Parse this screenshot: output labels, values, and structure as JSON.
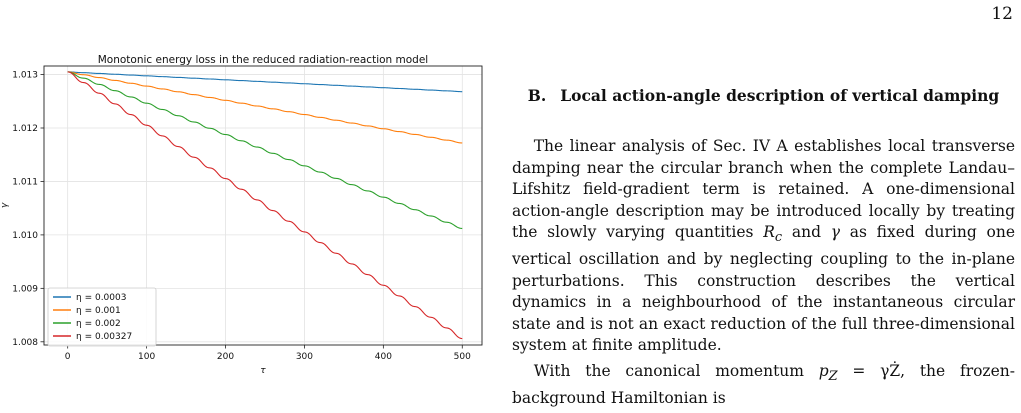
{
  "page": {
    "number": "12"
  },
  "figure": {
    "chart_data": {
      "type": "line",
      "title": "Monotonic energy loss in the reduced radiation-reaction model",
      "xlabel": "τ",
      "ylabel": "γ",
      "xlim": [
        -30,
        525
      ],
      "ylim": [
        1.00794,
        1.01316
      ],
      "x_ticks": [
        0,
        100,
        200,
        300,
        400,
        500
      ],
      "x_tick_labels": [
        "0",
        "100",
        "200",
        "300",
        "400",
        "500"
      ],
      "y_ticks": [
        1.008,
        1.009,
        1.01,
        1.011,
        1.012,
        1.013
      ],
      "y_tick_labels": [
        "1.008",
        "1.009",
        "1.010",
        "1.011",
        "1.012",
        "1.013"
      ],
      "grid": true,
      "legend_position": "lower-left",
      "x_start": 0,
      "x_end": 500,
      "step_period": 20,
      "series": [
        {
          "name": "η = 0.0003",
          "color": "#1f77b4",
          "start": 1.01305,
          "end": 1.01268
        },
        {
          "name": "η = 0.001",
          "color": "#ff7f0e",
          "start": 1.01305,
          "end": 1.01172
        },
        {
          "name": "η = 0.002",
          "color": "#2ca02c",
          "start": 1.01305,
          "end": 1.01012
        },
        {
          "name": "η = 0.00327",
          "color": "#d62728",
          "start": 1.01305,
          "end": 1.00806
        }
      ]
    }
  },
  "section": {
    "number": "B.",
    "title": "Local action-angle description of vertical damping"
  },
  "body": {
    "para1": {
      "p1": "The linear analysis of Sec. IV A establishes local transverse damping near the circular branch when the complete Landau–Lifshitz field-gradient term is retained. A one-dimensional action-angle description may be introduced locally by treating the slowly varying quantities ",
      "rc": "R",
      "rc_sub": "c",
      "and": " and ",
      "gamma": "γ",
      "p2": " as fixed during one vertical oscillation and by neglecting coupling to the in-plane perturbations. This construction describes the vertical dynamics in a neighbourhood of the instantaneous circular state and is not an exact reduction of the full three-dimensional system at finite amplitude."
    },
    "para2": {
      "p1": "With the canonical momentum ",
      "pz": "p",
      "pz_sub": "Z",
      "eq": " = γŻ",
      "p2": ", the frozen-background Hamiltonian is"
    }
  }
}
